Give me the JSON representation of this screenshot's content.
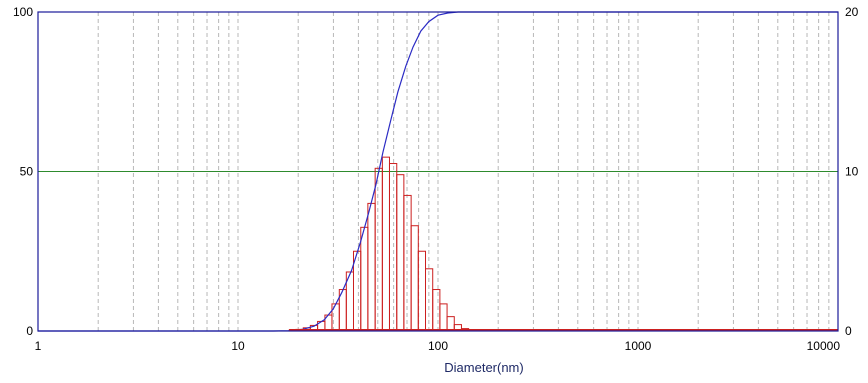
{
  "chart_data": {
    "type": "bar",
    "xlabel": "Diameter(nm)",
    "x_scale": "log",
    "xlim": [
      1,
      10000
    ],
    "x_ticks": [
      {
        "value": 1,
        "label": "1"
      },
      {
        "value": 10,
        "label": "10"
      },
      {
        "value": 100,
        "label": "100"
      },
      {
        "value": 1000,
        "label": "1000"
      },
      {
        "value": 10000,
        "label": "10000"
      }
    ],
    "y_left": {
      "lim": [
        0,
        100
      ],
      "ticks": [
        {
          "value": 0,
          "label": "0"
        },
        {
          "value": 50,
          "label": "50"
        },
        {
          "value": 100,
          "label": "100"
        }
      ]
    },
    "y_right": {
      "lim": [
        0,
        20
      ],
      "ticks": [
        {
          "value": 0,
          "label": "0"
        },
        {
          "value": 10,
          "label": "10"
        },
        {
          "value": 20,
          "label": "20"
        }
      ]
    },
    "grid": {
      "vertical_minor": true,
      "dashed": true
    },
    "reference_line": {
      "y_left": 50,
      "color": "#2e8b2e"
    },
    "histogram": {
      "color": "#cc1f1f",
      "axis": "right",
      "bins": [
        {
          "left": 18.0,
          "right": 19.5,
          "value": 0.05
        },
        {
          "left": 19.5,
          "right": 21.2,
          "value": 0.1
        },
        {
          "left": 21.2,
          "right": 23.0,
          "value": 0.2
        },
        {
          "left": 23.0,
          "right": 25.0,
          "value": 0.35
        },
        {
          "left": 25.0,
          "right": 27.2,
          "value": 0.6
        },
        {
          "left": 27.2,
          "right": 29.5,
          "value": 1.0
        },
        {
          "left": 29.5,
          "right": 32.1,
          "value": 1.7
        },
        {
          "left": 32.1,
          "right": 34.8,
          "value": 2.6
        },
        {
          "left": 34.8,
          "right": 37.8,
          "value": 3.7
        },
        {
          "left": 37.8,
          "right": 41.1,
          "value": 5.0
        },
        {
          "left": 41.1,
          "right": 44.6,
          "value": 6.5
        },
        {
          "left": 44.6,
          "right": 48.5,
          "value": 8.0
        },
        {
          "left": 48.5,
          "right": 52.7,
          "value": 10.2
        },
        {
          "left": 52.7,
          "right": 57.2,
          "value": 10.9
        },
        {
          "left": 57.2,
          "right": 62.2,
          "value": 10.5
        },
        {
          "left": 62.2,
          "right": 67.5,
          "value": 9.8
        },
        {
          "left": 67.5,
          "right": 73.4,
          "value": 8.5
        },
        {
          "left": 73.4,
          "right": 79.7,
          "value": 6.6
        },
        {
          "left": 79.7,
          "right": 86.6,
          "value": 5.0
        },
        {
          "left": 86.6,
          "right": 94.1,
          "value": 3.9
        },
        {
          "left": 94.1,
          "right": 102.2,
          "value": 2.6
        },
        {
          "left": 102.2,
          "right": 111.0,
          "value": 1.7
        },
        {
          "left": 111.0,
          "right": 120.6,
          "value": 0.9
        },
        {
          "left": 120.6,
          "right": 131.0,
          "value": 0.4
        },
        {
          "left": 131.0,
          "right": 142.3,
          "value": 0.15
        }
      ]
    },
    "cumulative": {
      "color": "#2b2bc4",
      "axis": "left",
      "points": [
        {
          "x": 1,
          "y": 0
        },
        {
          "x": 15,
          "y": 0
        },
        {
          "x": 18,
          "y": 0.1
        },
        {
          "x": 21,
          "y": 0.5
        },
        {
          "x": 24,
          "y": 1.5
        },
        {
          "x": 27,
          "y": 3.5
        },
        {
          "x": 30,
          "y": 7
        },
        {
          "x": 33,
          "y": 12
        },
        {
          "x": 37,
          "y": 19
        },
        {
          "x": 41,
          "y": 28
        },
        {
          "x": 45,
          "y": 37
        },
        {
          "x": 49,
          "y": 46
        },
        {
          "x": 53,
          "y": 56
        },
        {
          "x": 58,
          "y": 66
        },
        {
          "x": 63,
          "y": 75
        },
        {
          "x": 69,
          "y": 83
        },
        {
          "x": 75,
          "y": 89
        },
        {
          "x": 82,
          "y": 94
        },
        {
          "x": 90,
          "y": 97
        },
        {
          "x": 100,
          "y": 99
        },
        {
          "x": 112,
          "y": 99.7
        },
        {
          "x": 126,
          "y": 100
        },
        {
          "x": 10000,
          "y": 100
        }
      ]
    }
  }
}
